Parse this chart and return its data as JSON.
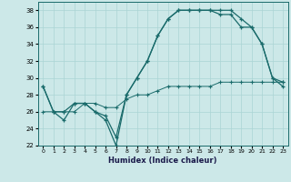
{
  "xlabel": "Humidex (Indice chaleur)",
  "bg_color": "#cce8e8",
  "grid_color": "#aad4d4",
  "line_color": "#1a6b6b",
  "xlim": [
    -0.5,
    23.5
  ],
  "ylim": [
    22,
    39
  ],
  "xticks": [
    0,
    1,
    2,
    3,
    4,
    5,
    6,
    7,
    8,
    9,
    10,
    11,
    12,
    13,
    14,
    15,
    16,
    17,
    18,
    19,
    20,
    21,
    22,
    23
  ],
  "yticks": [
    22,
    24,
    26,
    28,
    30,
    32,
    34,
    36,
    38
  ],
  "line1_x": [
    0,
    1,
    2,
    3,
    4,
    5,
    6,
    7,
    8,
    9,
    10,
    11,
    12,
    13,
    14,
    15,
    16,
    17,
    18,
    19,
    20,
    21,
    22,
    23
  ],
  "line1_y": [
    29,
    26,
    25,
    27,
    27,
    26,
    25,
    22,
    28,
    30,
    32,
    35,
    37,
    38,
    38,
    38,
    38,
    38,
    38,
    37,
    36,
    34,
    30,
    29.5
  ],
  "line2_x": [
    0,
    1,
    2,
    3,
    4,
    5,
    6,
    7,
    8,
    9,
    10,
    11,
    12,
    13,
    14,
    15,
    16,
    17,
    18,
    19,
    20,
    21,
    22,
    23
  ],
  "line2_y": [
    29,
    26,
    26,
    27,
    27,
    26,
    25.5,
    23,
    28,
    30,
    32,
    35,
    37,
    38,
    38,
    38,
    38,
    37.5,
    37.5,
    36,
    36,
    34,
    30,
    29
  ],
  "line3_x": [
    0,
    1,
    2,
    3,
    4,
    5,
    6,
    7,
    8,
    9,
    10,
    11,
    12,
    13,
    14,
    15,
    16,
    17,
    18,
    19,
    20,
    21,
    22,
    23
  ],
  "line3_y": [
    26,
    26,
    26,
    26,
    27,
    27,
    26.5,
    26.5,
    27.5,
    28,
    28,
    28.5,
    29,
    29,
    29,
    29,
    29,
    29.5,
    29.5,
    29.5,
    29.5,
    29.5,
    29.5,
    29.5
  ]
}
